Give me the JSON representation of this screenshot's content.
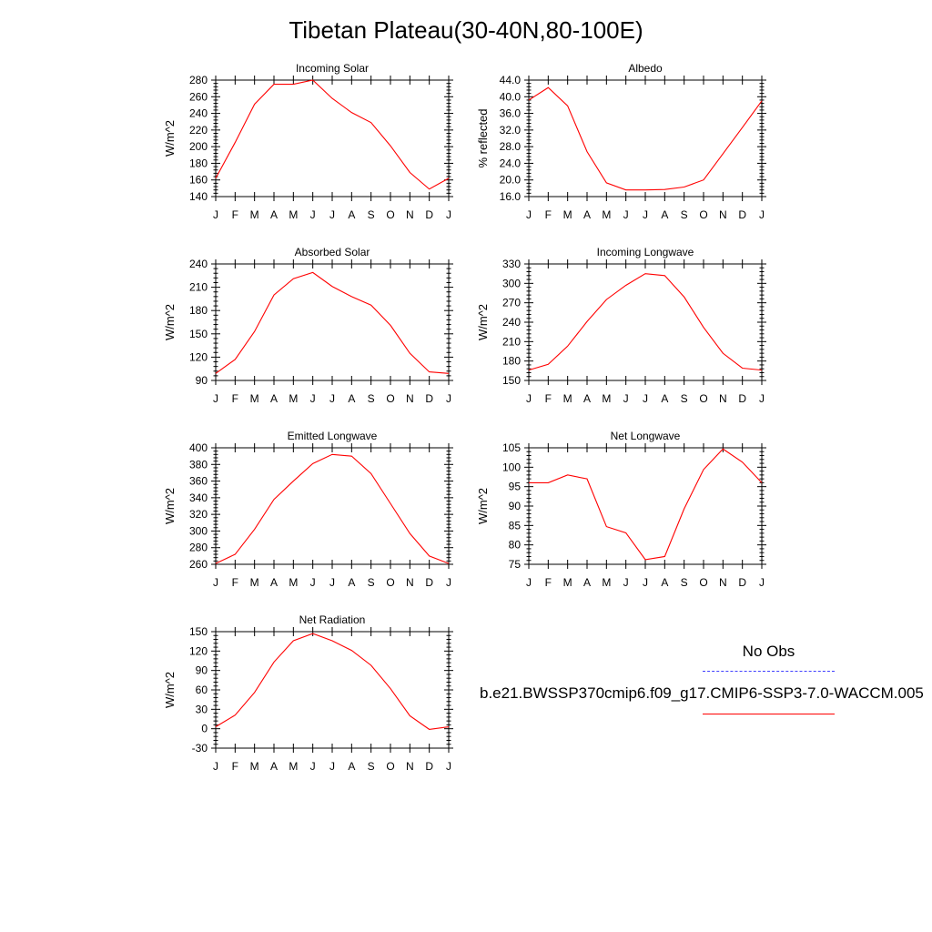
{
  "title": "Tibetan Plateau(30-40N,80-100E)",
  "months": [
    "J",
    "F",
    "M",
    "A",
    "M",
    "J",
    "J",
    "A",
    "S",
    "O",
    "N",
    "D",
    "J"
  ],
  "legend": {
    "obs_label": "No Obs",
    "obs_color": "#4040ff",
    "model_label": "b.e21.BWSSP370cmip6.f09_g17.CMIP6-SSP3-7.0-WACCM.005",
    "model_color": "#ff0000"
  },
  "chart_data": [
    {
      "type": "line",
      "title": "Incoming Solar",
      "ylabel": "W/m^2",
      "ylim": [
        140,
        280
      ],
      "yticks": [
        140,
        160,
        180,
        200,
        220,
        240,
        260,
        280
      ],
      "ytick_labels": [
        "140",
        "160",
        "180",
        "200",
        "220",
        "240",
        "260",
        "280"
      ],
      "x": [
        "J",
        "F",
        "M",
        "A",
        "M",
        "J",
        "J",
        "A",
        "S",
        "O",
        "N",
        "D",
        "J"
      ],
      "series": [
        {
          "values": [
            162,
            205,
            251,
            275,
            275,
            280,
            258,
            241,
            229,
            201,
            169,
            149,
            162
          ]
        }
      ]
    },
    {
      "type": "line",
      "title": "Albedo",
      "ylabel": "% reflected",
      "ylim": [
        16,
        44
      ],
      "yticks": [
        16,
        20,
        24,
        28,
        32,
        36,
        40,
        44
      ],
      "ytick_labels": [
        "16.0",
        "20.0",
        "24.0",
        "28.0",
        "32.0",
        "36.0",
        "40.0",
        "44.0"
      ],
      "x": [
        "J",
        "F",
        "M",
        "A",
        "M",
        "J",
        "J",
        "A",
        "S",
        "O",
        "N",
        "D",
        "J"
      ],
      "series": [
        {
          "values": [
            39.2,
            42.2,
            37.8,
            26.8,
            19.3,
            17.6,
            17.6,
            17.7,
            18.3,
            20.0,
            26.3,
            32.6,
            39.0
          ]
        }
      ]
    },
    {
      "type": "line",
      "title": "Absorbed Solar",
      "ylabel": "W/m^2",
      "ylim": [
        90,
        240
      ],
      "yticks": [
        90,
        120,
        150,
        180,
        210,
        240
      ],
      "ytick_labels": [
        "90",
        "120",
        "150",
        "180",
        "210",
        "240"
      ],
      "x": [
        "J",
        "F",
        "M",
        "A",
        "M",
        "J",
        "J",
        "A",
        "S",
        "O",
        "N",
        "D",
        "J"
      ],
      "series": [
        {
          "values": [
            99,
            117,
            153,
            200,
            221,
            229,
            211,
            198,
            187,
            161,
            125,
            101,
            99
          ]
        }
      ]
    },
    {
      "type": "line",
      "title": "Incoming Longwave",
      "ylabel": "W/m^2",
      "ylim": [
        150,
        330
      ],
      "yticks": [
        150,
        180,
        210,
        240,
        270,
        300,
        330
      ],
      "ytick_labels": [
        "150",
        "180",
        "210",
        "240",
        "270",
        "300",
        "330"
      ],
      "x": [
        "J",
        "F",
        "M",
        "A",
        "M",
        "J",
        "J",
        "A",
        "S",
        "O",
        "N",
        "D",
        "J"
      ],
      "series": [
        {
          "values": [
            166,
            175,
            203,
            241,
            275,
            297,
            315,
            312,
            279,
            232,
            192,
            169,
            166
          ]
        }
      ]
    },
    {
      "type": "line",
      "title": "Emitted Longwave",
      "ylabel": "W/m^2",
      "ylim": [
        260,
        400
      ],
      "yticks": [
        260,
        280,
        300,
        320,
        340,
        360,
        380,
        400
      ],
      "ytick_labels": [
        "260",
        "280",
        "300",
        "320",
        "340",
        "360",
        "380",
        "400"
      ],
      "x": [
        "J",
        "F",
        "M",
        "A",
        "M",
        "J",
        "J",
        "A",
        "S",
        "O",
        "N",
        "D",
        "J"
      ],
      "series": [
        {
          "values": [
            261,
            272,
            302,
            338,
            360,
            381,
            392,
            390,
            369,
            333,
            297,
            270,
            261
          ]
        }
      ]
    },
    {
      "type": "line",
      "title": "Net Longwave",
      "ylabel": "W/m^2",
      "ylim": [
        75,
        105
      ],
      "yticks": [
        75,
        80,
        85,
        90,
        95,
        100,
        105
      ],
      "ytick_labels": [
        "75",
        "80",
        "85",
        "90",
        "95",
        "100",
        "105"
      ],
      "x": [
        "J",
        "F",
        "M",
        "A",
        "M",
        "J",
        "J",
        "A",
        "S",
        "O",
        "N",
        "D",
        "J"
      ],
      "series": [
        {
          "values": [
            96,
            96,
            98,
            97,
            84.7,
            83.1,
            76.2,
            77,
            89.3,
            99.4,
            104.7,
            101.3,
            96
          ]
        }
      ]
    },
    {
      "type": "line",
      "title": "Net Radiation",
      "ylabel": "W/m^2",
      "ylim": [
        -30,
        150
      ],
      "yticks": [
        -30,
        0,
        30,
        60,
        90,
        120,
        150
      ],
      "ytick_labels": [
        "-30",
        "0",
        "30",
        "60",
        "90",
        "120",
        "150"
      ],
      "x": [
        "J",
        "F",
        "M",
        "A",
        "M",
        "J",
        "J",
        "A",
        "S",
        "O",
        "N",
        "D",
        "J"
      ],
      "series": [
        {
          "values": [
            3,
            21,
            56,
            103,
            136,
            147,
            136,
            121,
            98,
            62,
            20,
            -1,
            3
          ]
        }
      ]
    }
  ]
}
